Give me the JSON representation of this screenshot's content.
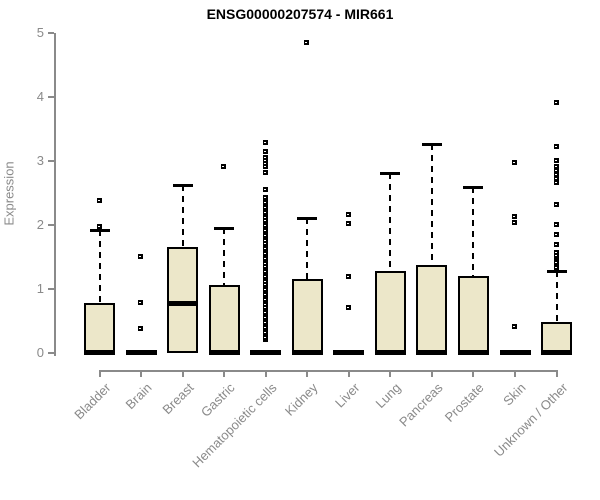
{
  "title": "ENSG00000207574 - MIR661",
  "colors": {
    "box_fill": "#ece7c9",
    "box_border": "#000000",
    "median": "#000000",
    "axis": "#8a8a8a",
    "tick_label": "#8a8a8a",
    "title": "#000000",
    "background": "#ffffff"
  },
  "chart_data": {
    "type": "boxplot",
    "title": "ENSG00000207574 - MIR661",
    "xlabel": "",
    "ylabel": "Expression",
    "ylim": [
      0,
      5
    ],
    "yticks": [
      "0",
      "1",
      "2",
      "3",
      "4",
      "5"
    ],
    "grid": "off",
    "legend": "none",
    "categories": [
      "Bladder",
      "Brain",
      "Breast",
      "Gastric",
      "Hematopoietic cells",
      "Kidney",
      "Liver",
      "Lung",
      "Pancreas",
      "Prostate",
      "Skin",
      "Unknown / Other"
    ],
    "series": [
      {
        "name": "Bladder",
        "type": "box",
        "q1": 0,
        "median": 0.02,
        "q3": 0.78,
        "whisker_low": 0,
        "whisker_high": 1.92,
        "outliers": [
          1.97,
          2.37
        ]
      },
      {
        "name": "Brain",
        "type": "flat",
        "median": 0.02,
        "outliers": [
          0.38,
          0.78,
          1.5
        ]
      },
      {
        "name": "Breast",
        "type": "box",
        "q1": 0,
        "median": 0.78,
        "q3": 1.66,
        "whisker_low": 0,
        "whisker_high": 2.62,
        "outliers": []
      },
      {
        "name": "Gastric",
        "type": "box",
        "q1": 0,
        "median": 0.02,
        "q3": 1.07,
        "whisker_low": 0,
        "whisker_high": 1.95,
        "outliers": [
          2.9
        ]
      },
      {
        "name": "Hematopoietic cells",
        "type": "flat",
        "median": 0.02,
        "outliers": [
          0.2,
          0.24,
          0.28,
          0.31,
          0.39,
          0.43,
          0.47,
          0.51,
          0.55,
          0.59,
          0.63,
          0.67,
          0.71,
          0.75,
          0.79,
          0.83,
          0.87,
          0.91,
          0.95,
          0.99,
          1.03,
          1.07,
          1.11,
          1.15,
          1.19,
          1.23,
          1.27,
          1.31,
          1.35,
          1.39,
          1.43,
          1.47,
          1.51,
          1.55,
          1.59,
          1.63,
          1.67,
          1.71,
          1.75,
          1.79,
          1.83,
          1.87,
          1.91,
          1.95,
          1.99,
          2.03,
          2.07,
          2.11,
          2.15,
          2.19,
          2.23,
          2.27,
          2.31,
          2.35,
          2.39,
          2.42,
          2.55,
          2.81,
          2.9,
          2.95,
          3.0,
          3.05,
          3.14,
          3.28
        ]
      },
      {
        "name": "Kidney",
        "type": "box",
        "q1": 0,
        "median": 0.02,
        "q3": 1.15,
        "whisker_low": 0,
        "whisker_high": 2.11,
        "outliers": [
          4.85
        ]
      },
      {
        "name": "Liver",
        "type": "flat",
        "median": 0.02,
        "outliers": [
          0.7,
          1.19,
          2.02,
          2.16
        ]
      },
      {
        "name": "Lung",
        "type": "box",
        "q1": 0,
        "median": 0.02,
        "q3": 1.28,
        "whisker_low": 0,
        "whisker_high": 2.82,
        "outliers": []
      },
      {
        "name": "Pancreas",
        "type": "box",
        "q1": 0,
        "median": 0.02,
        "q3": 1.38,
        "whisker_low": 0,
        "whisker_high": 3.26,
        "outliers": []
      },
      {
        "name": "Prostate",
        "type": "box",
        "q1": 0,
        "median": 0.02,
        "q3": 1.2,
        "whisker_low": 0,
        "whisker_high": 2.6,
        "outliers": []
      },
      {
        "name": "Skin",
        "type": "flat",
        "median": 0.02,
        "outliers": [
          0.41,
          2.03,
          2.12,
          2.97
        ]
      },
      {
        "name": "Unknown / Other",
        "type": "box",
        "q1": 0,
        "median": 0.02,
        "q3": 0.48,
        "whisker_low": 0,
        "whisker_high": 1.28,
        "outliers": [
          1.3,
          1.33,
          1.37,
          1.41,
          1.48,
          1.52,
          1.56,
          1.69,
          1.84,
          2.0,
          2.31,
          2.66,
          2.72,
          2.78,
          2.84,
          2.9,
          3.0,
          3.22,
          3.9
        ]
      }
    ]
  }
}
